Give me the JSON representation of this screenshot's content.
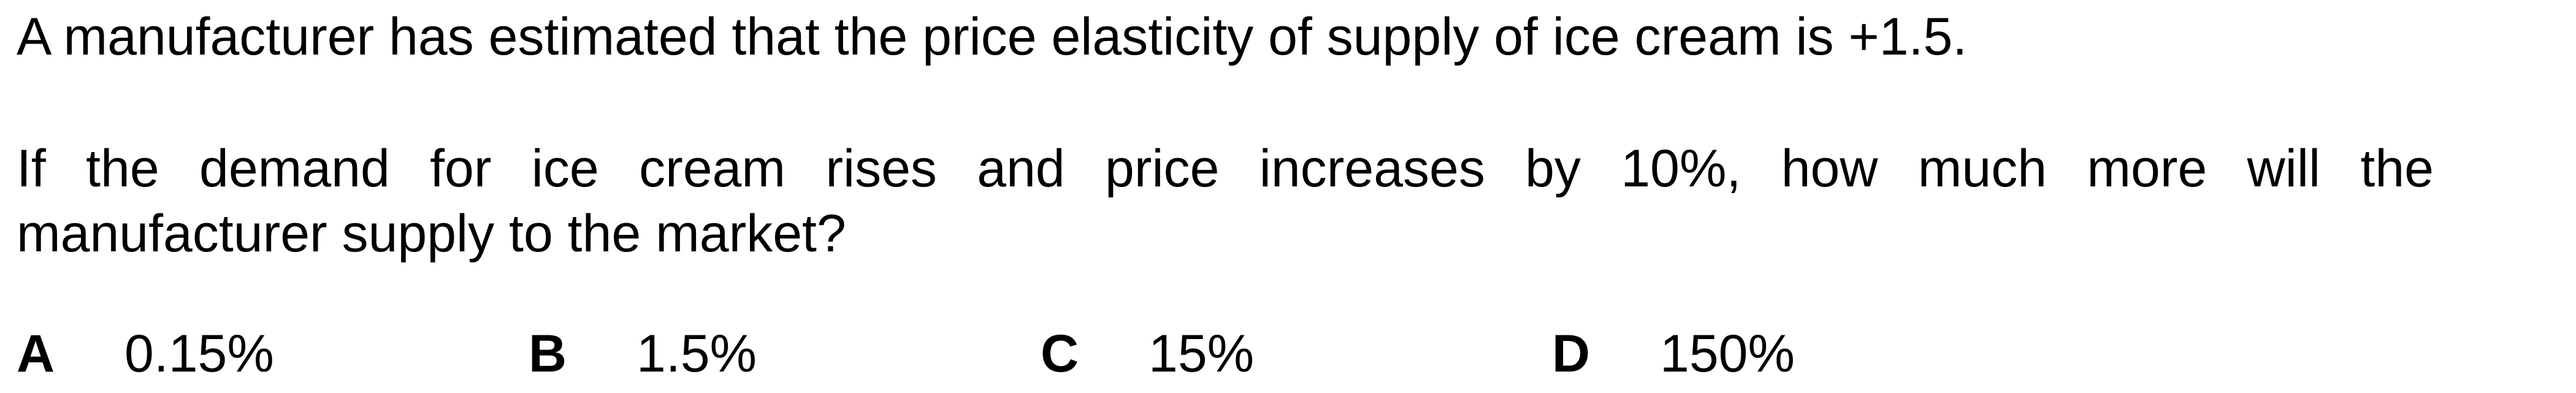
{
  "question": {
    "intro": "A manufacturer has estimated that the price elasticity of supply of ice cream is +1.5.",
    "prompt_line1": "If the demand for ice cream rises and price increases by 10%, how much more will the",
    "prompt_line2": "manufacturer supply to the market?"
  },
  "options": [
    {
      "letter": "A",
      "text": "0.15%"
    },
    {
      "letter": "B",
      "text": "1.5%"
    },
    {
      "letter": "C",
      "text": "15%"
    },
    {
      "letter": "D",
      "text": "150%"
    }
  ]
}
